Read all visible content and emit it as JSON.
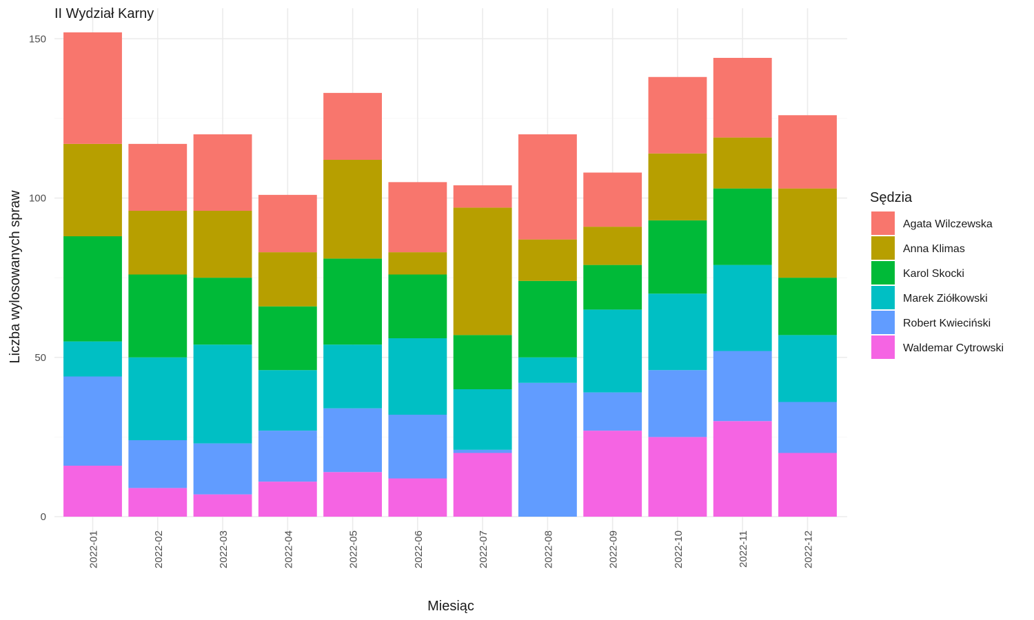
{
  "chart_data": {
    "type": "bar",
    "stacked": true,
    "title": "II Wydział Karny",
    "xlabel": "Miesiąc",
    "ylabel": "Liczba wylosowanych spraw",
    "ylim": [
      0,
      152
    ],
    "yticks": [
      0,
      50,
      100,
      150
    ],
    "grid": true,
    "legend_title": "Sędzia",
    "legend_position": "right",
    "categories": [
      "2022-01",
      "2022-02",
      "2022-03",
      "2022-04",
      "2022-05",
      "2022-06",
      "2022-07",
      "2022-08",
      "2022-09",
      "2022-10",
      "2022-11",
      "2022-12"
    ],
    "series": [
      {
        "name": "Waldemar Cytrowski",
        "color": "#F564E3",
        "values": [
          16,
          9,
          7,
          11,
          14,
          12,
          20,
          0,
          27,
          25,
          30,
          20
        ]
      },
      {
        "name": "Robert Kwieciński",
        "color": "#619CFF",
        "values": [
          28,
          15,
          16,
          16,
          20,
          20,
          1,
          42,
          12,
          21,
          22,
          16
        ]
      },
      {
        "name": "Marek Ziółkowski",
        "color": "#00BFC4",
        "values": [
          11,
          26,
          31,
          19,
          20,
          24,
          19,
          8,
          26,
          24,
          27,
          21
        ]
      },
      {
        "name": "Karol Skocki",
        "color": "#00BA38",
        "values": [
          33,
          26,
          21,
          20,
          27,
          20,
          17,
          24,
          14,
          23,
          24,
          18
        ]
      },
      {
        "name": "Anna Klimas",
        "color": "#B79F00",
        "values": [
          29,
          20,
          21,
          17,
          31,
          7,
          40,
          13,
          12,
          21,
          16,
          28
        ]
      },
      {
        "name": "Agata Wilczewska",
        "color": "#F8766D",
        "values": [
          35,
          21,
          24,
          18,
          21,
          22,
          7,
          33,
          17,
          24,
          25,
          23
        ]
      }
    ],
    "legend_order": [
      "Agata Wilczewska",
      "Anna Klimas",
      "Karol Skocki",
      "Marek Ziółkowski",
      "Robert Kwieciński",
      "Waldemar Cytrowski"
    ]
  }
}
